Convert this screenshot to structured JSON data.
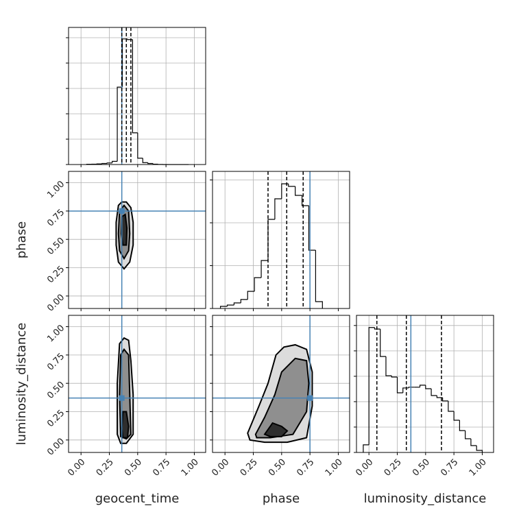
{
  "chart_data": {
    "type": "corner",
    "parameters": [
      "geocent_time",
      "phase",
      "luminosity_distance"
    ],
    "truths": [
      0.36,
      0.75,
      0.37
    ],
    "truth_color": "#4682b4",
    "lim": [
      -0.11,
      1.1
    ],
    "ticks": [
      {
        "value": 0,
        "label": "0.00"
      },
      {
        "value": 0.25,
        "label": "0.25"
      },
      {
        "value": 0.5,
        "label": "0.50"
      },
      {
        "value": 0.75,
        "label": "0.75"
      },
      {
        "value": 1,
        "label": "1.00"
      }
    ],
    "grid": true,
    "level_colors": [
      "#dcdcdc",
      "#8f8f8f",
      "#2e2e2e"
    ],
    "histograms": [
      {
        "bins": [
          0.05,
          0.095,
          0.14,
          0.185,
          0.23,
          0.275,
          0.32,
          0.365,
          0.41,
          0.455,
          0.5,
          0.545,
          0.59,
          0.635,
          0.68,
          0.725,
          0.77,
          0.815,
          0.86,
          0.905,
          0.95
        ],
        "counts": [
          2,
          3,
          5,
          8,
          12,
          25,
          610,
          990,
          985,
          250,
          50,
          15,
          8,
          3,
          1,
          0,
          0,
          0,
          0,
          0
        ],
        "ylim": [
          0,
          1081
        ],
        "yticks": [
          0,
          200,
          400,
          600,
          800,
          1000
        ],
        "quantiles": [
          0.36,
          0.4,
          0.44
        ]
      },
      {
        "bins": [
          -0.04,
          0.02,
          0.08,
          0.14,
          0.2,
          0.26,
          0.32,
          0.38,
          0.44,
          0.5,
          0.56,
          0.62,
          0.68,
          0.74,
          0.8,
          0.86
        ],
        "counts": [
          10,
          16,
          26,
          42,
          80,
          144,
          224,
          416,
          512,
          582,
          570,
          528,
          480,
          272,
          32
        ],
        "ylim": [
          0,
          640
        ],
        "yticks": [
          0,
          200,
          400,
          600
        ],
        "quantiles": [
          0.38,
          0.545,
          0.69
        ]
      },
      {
        "bins": [
          -0.05,
          0,
          0.05,
          0.1,
          0.15,
          0.2,
          0.25,
          0.3,
          0.35,
          0.4,
          0.45,
          0.5,
          0.55,
          0.6,
          0.65,
          0.7,
          0.75,
          0.8,
          0.85,
          0.9,
          0.95,
          1.0
        ],
        "counts": [
          30,
          492,
          486,
          378,
          302,
          297,
          235,
          254,
          257,
          257,
          265,
          251,
          224,
          216,
          203,
          162,
          127,
          86,
          54,
          27,
          8
        ],
        "ylim": [
          0,
          540
        ],
        "yticks": [
          0,
          100,
          200,
          300,
          400,
          500
        ],
        "quantiles": [
          0.07,
          0.33,
          0.64
        ]
      }
    ],
    "contours_2d": [
      {
        "levels": [
          {
            "x": [
              0.33,
              0.31,
              0.31,
              0.33,
              0.38,
              0.43,
              0.46,
              0.46,
              0.44,
              0.4,
              0.36
            ],
            "y": [
              0.8,
              0.65,
              0.45,
              0.3,
              0.24,
              0.3,
              0.45,
              0.65,
              0.78,
              0.83,
              0.83
            ]
          },
          {
            "x": [
              0.34,
              0.33,
              0.34,
              0.38,
              0.42,
              0.43,
              0.42,
              0.38
            ],
            "y": [
              0.75,
              0.55,
              0.4,
              0.33,
              0.4,
              0.55,
              0.75,
              0.8
            ]
          },
          {
            "x": [
              0.36,
              0.355,
              0.37,
              0.4,
              0.405,
              0.39
            ],
            "y": [
              0.7,
              0.55,
              0.45,
              0.45,
              0.6,
              0.72
            ]
          }
        ]
      },
      {
        "levels": [
          {
            "x": [
              0.34,
              0.32,
              0.32,
              0.35,
              0.4,
              0.46,
              0.46,
              0.44,
              0.42,
              0.38
            ],
            "y": [
              0.85,
              0.5,
              0.05,
              -0.03,
              -0.03,
              0.05,
              0.4,
              0.7,
              0.88,
              0.9
            ]
          },
          {
            "x": [
              0.35,
              0.34,
              0.35,
              0.4,
              0.44,
              0.43,
              0.42,
              0.38
            ],
            "y": [
              0.75,
              0.4,
              0.03,
              0.01,
              0.05,
              0.4,
              0.75,
              0.8
            ]
          },
          {
            "x": [
              0.37,
              0.36,
              0.37,
              0.41,
              0.42,
              0.4
            ],
            "y": [
              0.25,
              0.1,
              0.02,
              0.02,
              0.12,
              0.25
            ]
          }
        ]
      },
      {
        "levels": [
          {
            "x": [
              0.2,
              0.3,
              0.38,
              0.45,
              0.52,
              0.62,
              0.72,
              0.77,
              0.77,
              0.72,
              0.55,
              0.35,
              0.22
            ],
            "y": [
              0.06,
              0.3,
              0.5,
              0.75,
              0.82,
              0.84,
              0.8,
              0.6,
              0.3,
              0.02,
              -0.02,
              -0.02,
              0.0
            ]
          },
          {
            "x": [
              0.27,
              0.35,
              0.44,
              0.5,
              0.62,
              0.72,
              0.74,
              0.72,
              0.6,
              0.4,
              0.28
            ],
            "y": [
              0.05,
              0.2,
              0.4,
              0.6,
              0.72,
              0.7,
              0.5,
              0.25,
              0.05,
              0.02,
              0.02
            ]
          },
          {
            "x": [
              0.35,
              0.42,
              0.5,
              0.55,
              0.5,
              0.4
            ],
            "y": [
              0.05,
              0.15,
              0.12,
              0.08,
              0.03,
              0.03
            ]
          }
        ]
      }
    ]
  }
}
